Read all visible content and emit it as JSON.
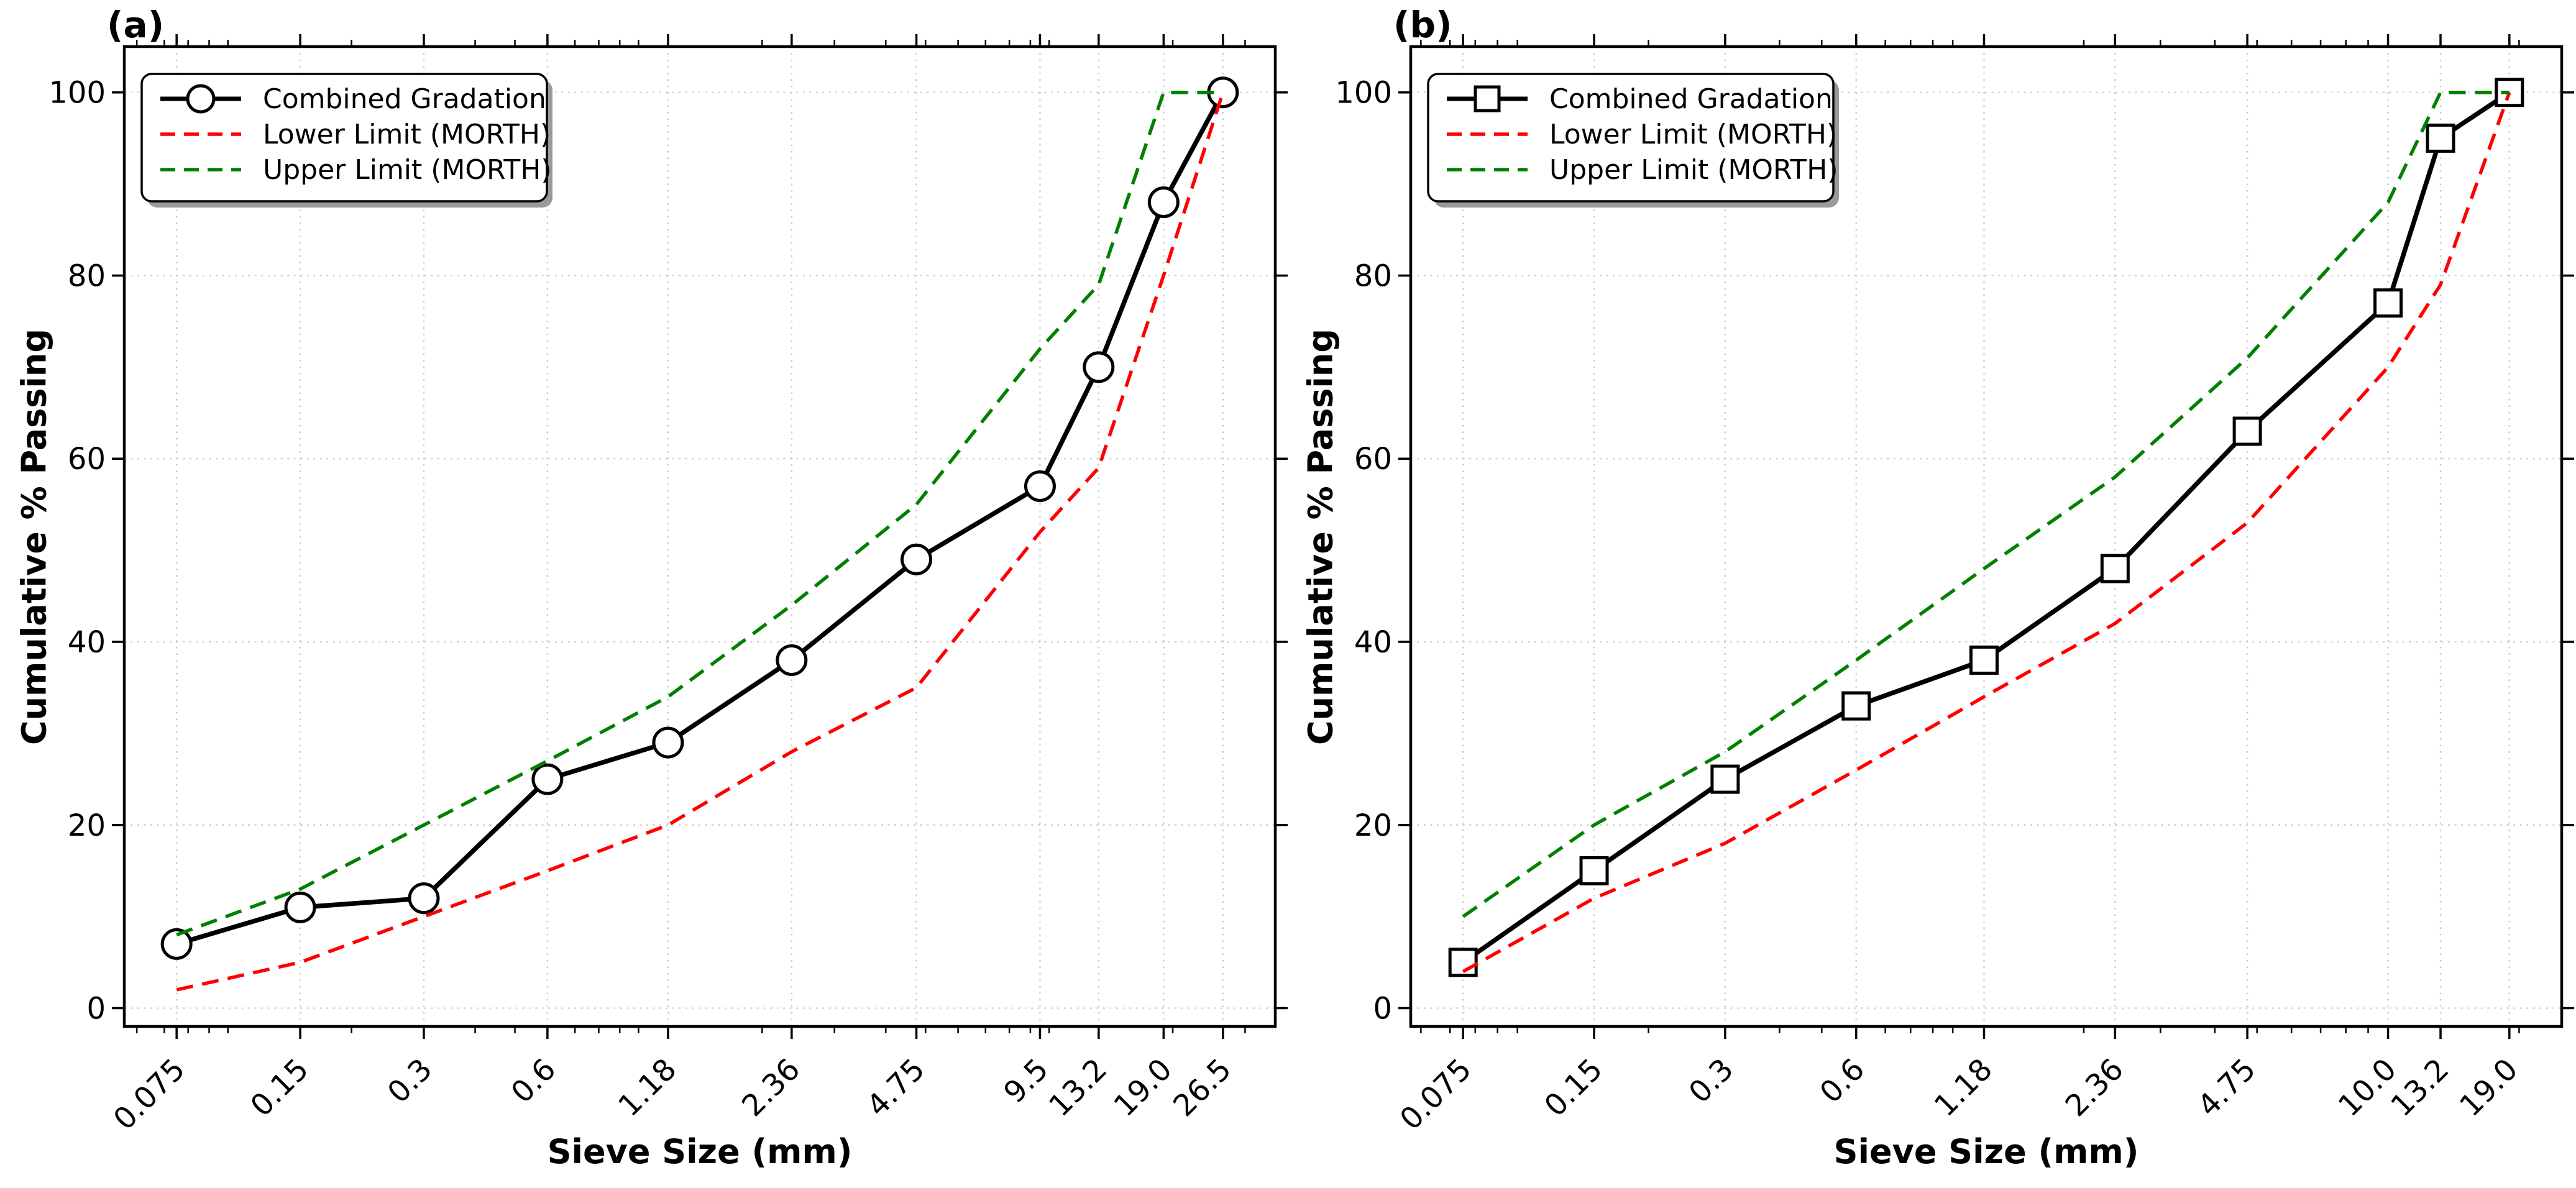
{
  "figure": {
    "background": "#ffffff",
    "grid_color": "#c8c8c8",
    "spine_color": "#000000"
  },
  "chart_data": [
    {
      "id": "a",
      "type": "line",
      "title": "(a)",
      "xlabel": "Sieve Size (mm)",
      "ylabel": "Cumulative % Passing",
      "x_scale": "log",
      "grid": true,
      "legend_position": "upper-left",
      "x": [
        0.075,
        0.15,
        0.3,
        0.6,
        1.18,
        2.36,
        4.75,
        9.5,
        13.2,
        19.0,
        26.5
      ],
      "x_tick_labels": [
        "0.075",
        "0.15",
        "0.3",
        "0.6",
        "1.18",
        "2.36",
        "4.75",
        "9.5",
        "13.2",
        "19.0",
        "26.5"
      ],
      "y_ticks": [
        0,
        20,
        40,
        60,
        80,
        100
      ],
      "y_tick_labels": [
        "0",
        "20",
        "40",
        "60",
        "80",
        "100"
      ],
      "ylim": [
        -2,
        105
      ],
      "series": [
        {
          "name": "Combined Gradation",
          "line": "solid",
          "marker": "circle",
          "color": "#000000",
          "marker_fill": "#ffffff",
          "values": [
            7,
            11,
            12,
            25,
            29,
            38,
            49,
            57,
            70,
            88,
            100
          ]
        },
        {
          "name": "Lower Limit (MORTH)",
          "line": "dashed",
          "marker": "none",
          "color": "#ff0000",
          "values": [
            2,
            5,
            10,
            15,
            20,
            28,
            35,
            52,
            59,
            80,
            100
          ]
        },
        {
          "name": "Upper Limit (MORTH)",
          "line": "dashed",
          "marker": "none",
          "color": "#008000",
          "values": [
            8,
            13,
            20,
            27,
            34,
            44,
            55,
            72,
            79,
            100,
            100
          ]
        }
      ]
    },
    {
      "id": "b",
      "type": "line",
      "title": "(b)",
      "xlabel": "Sieve Size (mm)",
      "ylabel": "Cumulative % Passing",
      "x_scale": "log",
      "grid": true,
      "legend_position": "upper-left",
      "x": [
        0.075,
        0.15,
        0.3,
        0.6,
        1.18,
        2.36,
        4.75,
        10.0,
        13.2,
        19.0
      ],
      "x_tick_labels": [
        "0.075",
        "0.15",
        "0.3",
        "0.6",
        "1.18",
        "2.36",
        "4.75",
        "10.0",
        "13.2",
        "19.0"
      ],
      "y_ticks": [
        0,
        20,
        40,
        60,
        80,
        100
      ],
      "y_tick_labels": [
        "0",
        "20",
        "40",
        "60",
        "80",
        "100"
      ],
      "ylim": [
        -2,
        105
      ],
      "series": [
        {
          "name": "Combined Gradation",
          "line": "solid",
          "marker": "square",
          "color": "#000000",
          "marker_fill": "#ffffff",
          "values": [
            5,
            15,
            25,
            33,
            38,
            48,
            63,
            77,
            95,
            100
          ]
        },
        {
          "name": "Lower Limit (MORTH)",
          "line": "dashed",
          "marker": "none",
          "color": "#ff0000",
          "values": [
            4,
            12,
            18,
            26,
            34,
            42,
            53,
            70,
            79,
            100
          ]
        },
        {
          "name": "Upper Limit (MORTH)",
          "line": "dashed",
          "marker": "none",
          "color": "#008000",
          "values": [
            10,
            20,
            28,
            38,
            48,
            58,
            71,
            88,
            100,
            100
          ]
        }
      ]
    }
  ]
}
